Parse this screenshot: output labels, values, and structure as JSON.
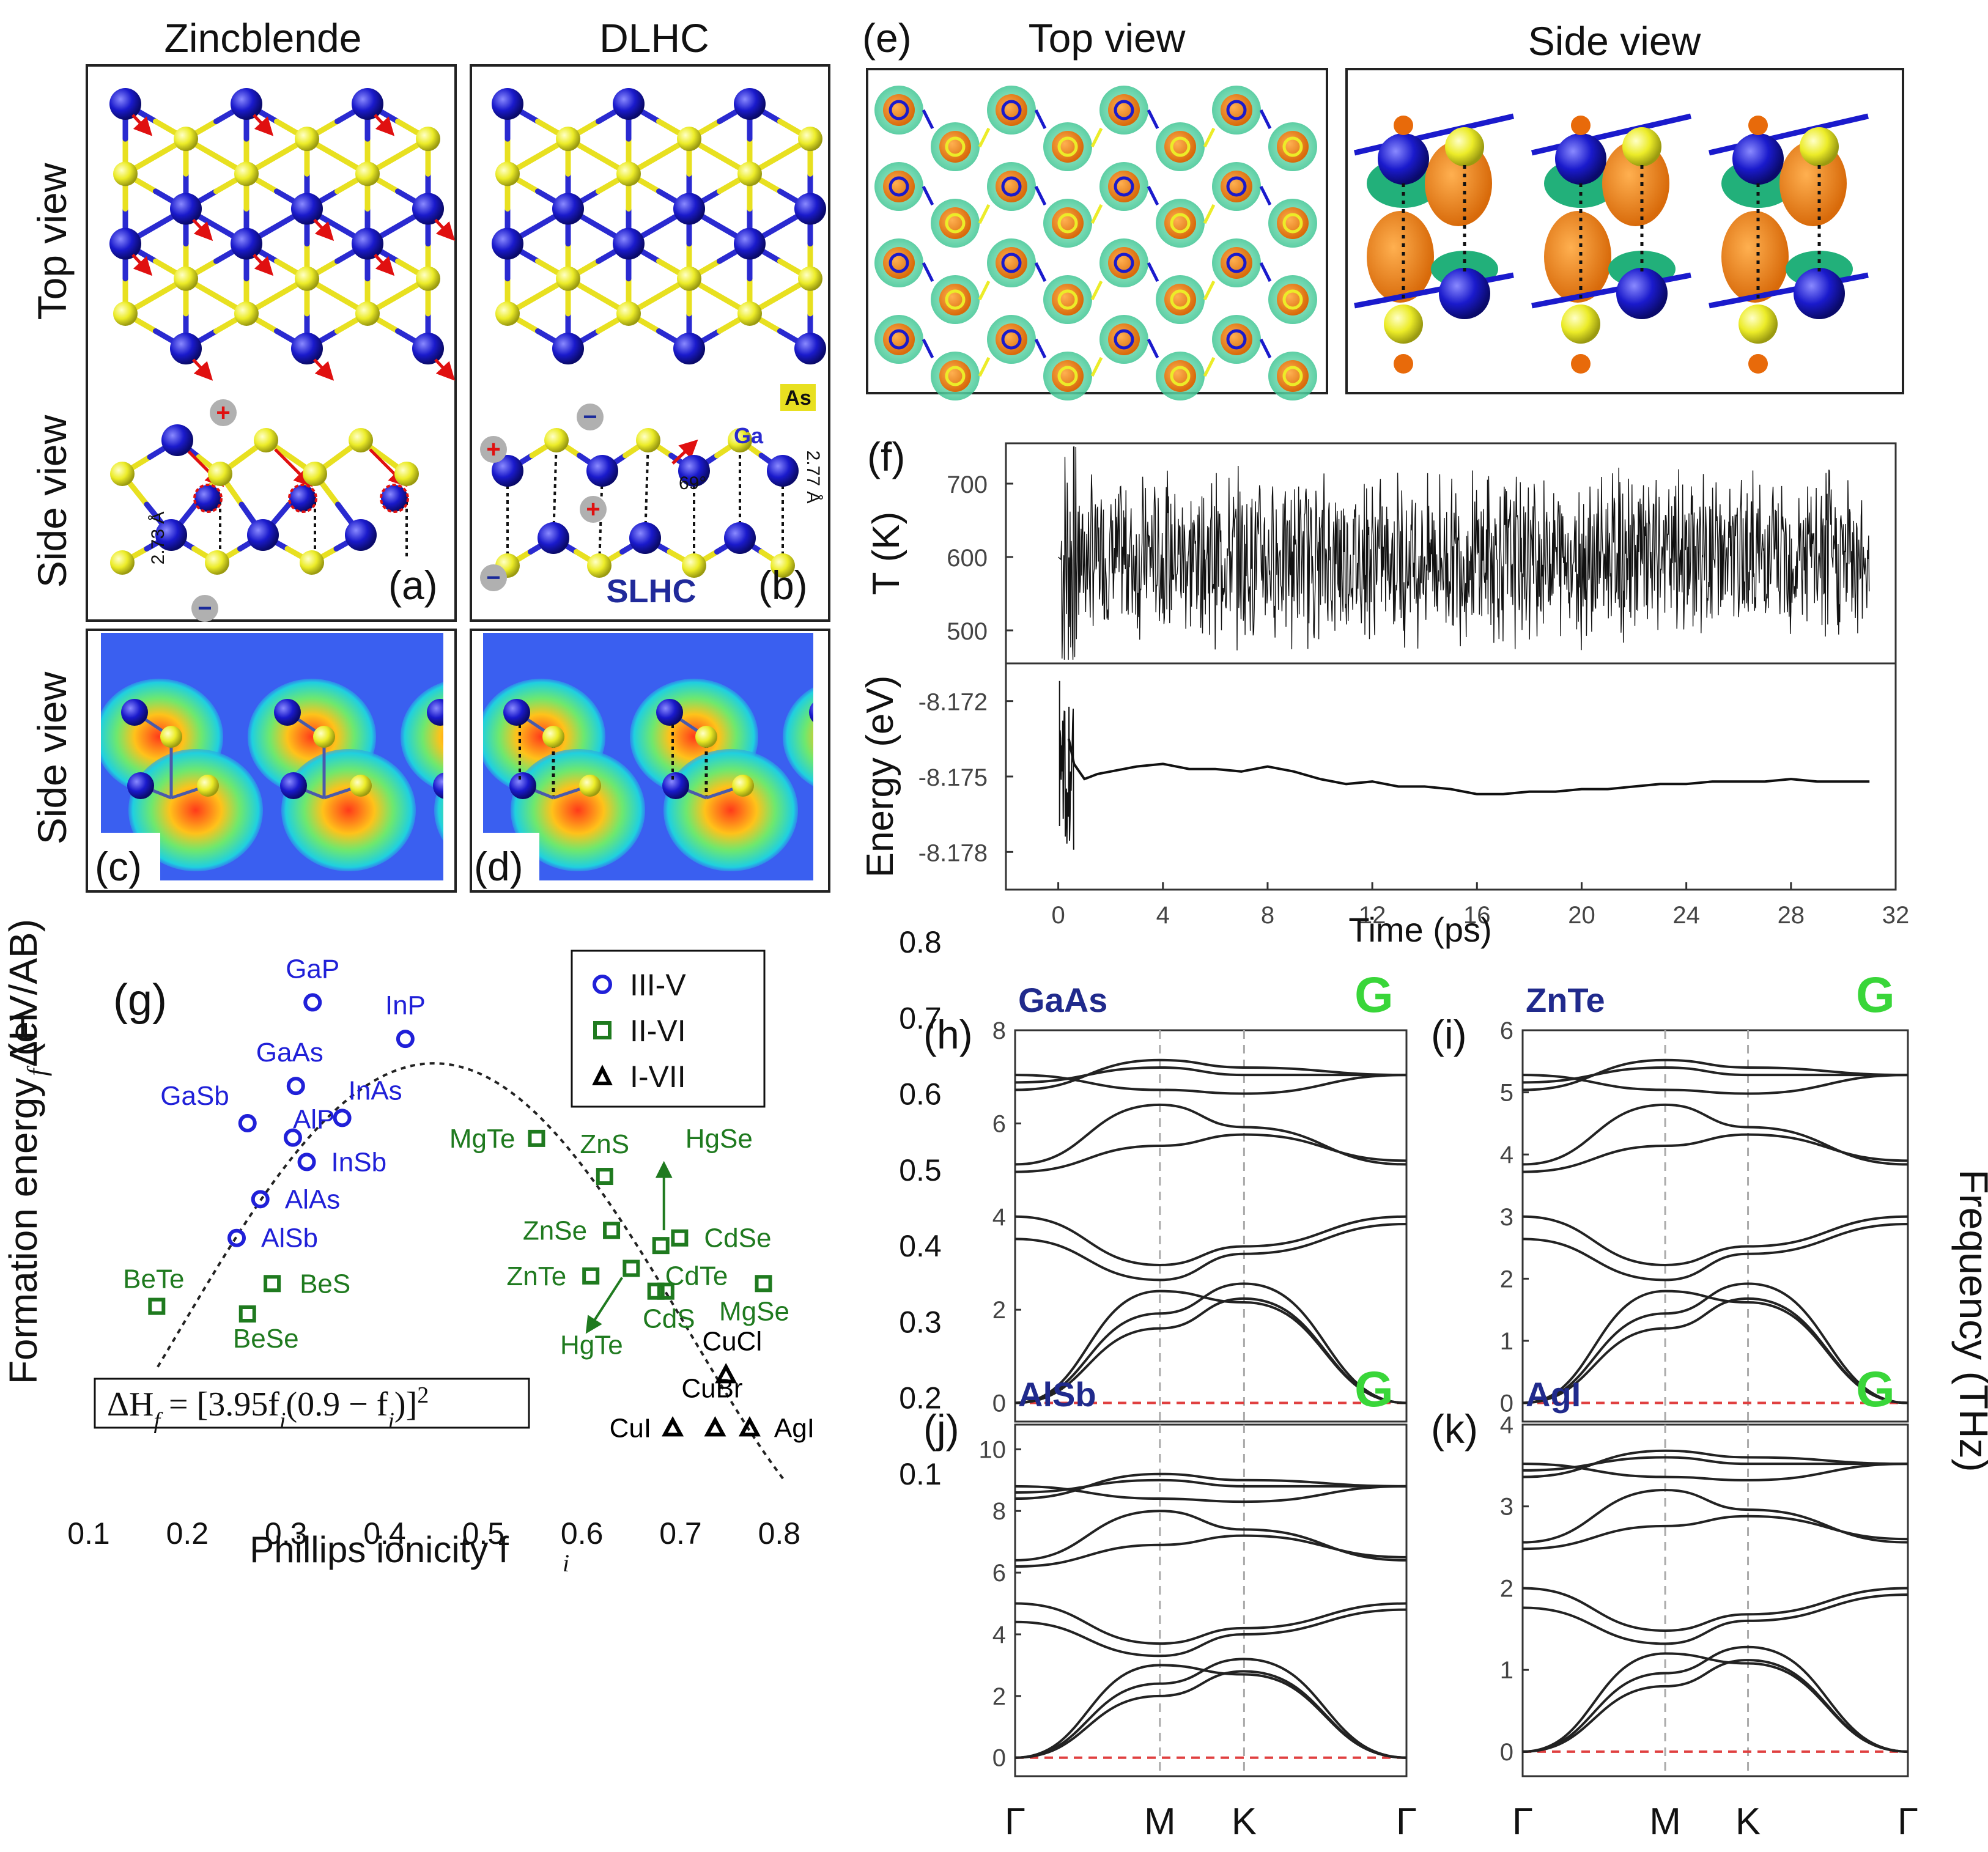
{
  "panels": {
    "a": {
      "label": "(a)",
      "title": "Zincblende",
      "bond": "2.73 Å"
    },
    "b": {
      "label": "(b)",
      "title": "DLHC",
      "bond": "2.77 Å",
      "angle": "69°",
      "ga": "Ga",
      "as": "As",
      "slhc": "SLHC"
    },
    "c": {
      "label": "(c)"
    },
    "d": {
      "label": "(d)"
    },
    "e": {
      "label": "(e)",
      "top": "Top view",
      "side": "Side view"
    },
    "f": {
      "label": "(f)"
    },
    "g": {
      "label": "(g)"
    },
    "h": {
      "label": "(h)",
      "name": "GaAs"
    },
    "i": {
      "label": "(i)",
      "name": "ZnTe"
    },
    "j": {
      "label": "(j)",
      "name": "AlSb"
    },
    "k": {
      "label": "(k)",
      "name": "AgI"
    }
  },
  "row_labels": {
    "top_view": "Top view",
    "side_view_1": "Side view",
    "side_view_2": "Side view"
  },
  "colors": {
    "ga": "#1a1acc",
    "as": "#e8e020",
    "bond_blue": "#2a2ad0",
    "bond_yellow": "#e8e020",
    "red_arrow": "#e01010",
    "iii_v": "#2020d8",
    "ii_vi": "#1f7a1f",
    "i_vii": "#000000",
    "band_line": "#222222",
    "zero_line": "#e04040",
    "g_letter": "#39d639"
  },
  "band_common": {
    "g_letter": "G",
    "xticks": [
      "Γ",
      "M",
      "K",
      "Γ"
    ],
    "ylabel": "Frequency (THz)"
  },
  "chart_data": [
    {
      "id": "f-top",
      "type": "line",
      "ylabel": "T (K)",
      "yticks": [
        500,
        600,
        700
      ],
      "ylim": [
        455,
        755
      ],
      "mean": 600,
      "xlim": [
        -2,
        32
      ]
    },
    {
      "id": "f-bottom",
      "type": "line",
      "ylabel": "Energy (eV)",
      "xlabel": "Time (ps)",
      "xticks": [
        0,
        4,
        8,
        12,
        16,
        20,
        24,
        28,
        32
      ],
      "yticks": [
        -8.172,
        -8.175,
        -8.178
      ],
      "ylim": [
        -8.1795,
        -8.1705
      ],
      "xlim": [
        -2,
        32
      ],
      "x": [
        0.4,
        0.6,
        0.8,
        1.0,
        1.5,
        2,
        3,
        4,
        5,
        6,
        7,
        8,
        9,
        10,
        11,
        12,
        13,
        14,
        15,
        16,
        17,
        18,
        19,
        20,
        21,
        22,
        23,
        24,
        25,
        26,
        27,
        28,
        29,
        30,
        31
      ],
      "y": [
        -8.1735,
        -8.1745,
        -8.1748,
        -8.1751,
        -8.1749,
        -8.1748,
        -8.1746,
        -8.1745,
        -8.1747,
        -8.1747,
        -8.1748,
        -8.1746,
        -8.1748,
        -8.1751,
        -8.1753,
        -8.1752,
        -8.1754,
        -8.1754,
        -8.1755,
        -8.1757,
        -8.1757,
        -8.1756,
        -8.1756,
        -8.1755,
        -8.1755,
        -8.1754,
        -8.1753,
        -8.1753,
        -8.1752,
        -8.1752,
        -8.1752,
        -8.1751,
        -8.1752,
        -8.1752,
        -8.1752
      ]
    },
    {
      "id": "g",
      "type": "scatter",
      "xlabel": "Phillips ionicity f",
      "xlabel_sub": "i",
      "ylabel": "Formation energy ΔH",
      "ylabel_sub": "f",
      "ylabel_unit": "(eV/AB)",
      "xlim": [
        0.1,
        0.85
      ],
      "ylim": [
        0.1,
        0.8
      ],
      "xticks": [
        0.1,
        0.2,
        0.3,
        0.4,
        0.5,
        0.6,
        0.7,
        0.8
      ],
      "yticks": [
        0.1,
        0.2,
        0.3,
        0.4,
        0.5,
        0.6,
        0.7,
        0.8
      ],
      "legend": [
        "III-V",
        "II-VI",
        "I-VII"
      ],
      "formula": "ΔH",
      "formula_sub": "f",
      "formula_rhs": " = [3.95f",
      "formula_sub2": "i",
      "formula_mid": "(0.9 − f",
      "formula_sub3": "i",
      "formula_end": ")]",
      "formula_sup": "2",
      "fit": {
        "a": 3.95,
        "b": 0.9
      },
      "series": [
        {
          "name": "III-V",
          "marker": "circle",
          "points": [
            {
              "label": "GaP",
              "x": 0.327,
              "y": 0.72
            },
            {
              "label": "InP",
              "x": 0.421,
              "y": 0.672
            },
            {
              "label": "GaAs",
              "x": 0.31,
              "y": 0.61
            },
            {
              "label": "GaSb",
              "x": 0.261,
              "y": 0.561
            },
            {
              "label": "InAs",
              "x": 0.357,
              "y": 0.568
            },
            {
              "label": "AlP",
              "x": 0.307,
              "y": 0.542
            },
            {
              "label": "InSb",
              "x": 0.321,
              "y": 0.51
            },
            {
              "label": "AlAs",
              "x": 0.274,
              "y": 0.461
            },
            {
              "label": "AlSb",
              "x": 0.25,
              "y": 0.41
            }
          ]
        },
        {
          "name": "II-VI",
          "marker": "square",
          "points": [
            {
              "label": "MgTe",
              "x": 0.554,
              "y": 0.541
            },
            {
              "label": "ZnS",
              "x": 0.623,
              "y": 0.491
            },
            {
              "label": "HgSe",
              "x": 0.68,
              "y": 0.4
            },
            {
              "label": "ZnSe",
              "x": 0.63,
              "y": 0.42
            },
            {
              "label": "CdSe",
              "x": 0.699,
              "y": 0.41
            },
            {
              "label": "CdTe",
              "x": 0.675,
              "y": 0.34
            },
            {
              "label": "ZnTe",
              "x": 0.609,
              "y": 0.36
            },
            {
              "label": "HgTe",
              "x": 0.65,
              "y": 0.37
            },
            {
              "label": "CdS",
              "x": 0.685,
              "y": 0.34
            },
            {
              "label": "MgSe",
              "x": 0.784,
              "y": 0.35
            },
            {
              "label": "BeTe",
              "x": 0.169,
              "y": 0.32
            },
            {
              "label": "BeS",
              "x": 0.286,
              "y": 0.35
            },
            {
              "label": "BeSe",
              "x": 0.261,
              "y": 0.31
            }
          ]
        },
        {
          "name": "I-VII",
          "marker": "triangle",
          "points": [
            {
              "label": "CuCl",
              "x": 0.746,
              "y": 0.23
            },
            {
              "label": "CuBr",
              "x": 0.735,
              "y": 0.16
            },
            {
              "label": "CuI",
              "x": 0.692,
              "y": 0.16
            },
            {
              "label": "AgI",
              "x": 0.77,
              "y": 0.16
            }
          ]
        }
      ]
    },
    {
      "id": "h",
      "type": "line",
      "title": "GaAs",
      "yticks": [
        0,
        2,
        4,
        6,
        8
      ],
      "ylim": [
        -0.4,
        8
      ]
    },
    {
      "id": "i",
      "type": "line",
      "title": "ZnTe",
      "yticks": [
        0,
        1,
        2,
        3,
        4,
        5,
        6
      ],
      "ylim": [
        -0.3,
        6
      ]
    },
    {
      "id": "j",
      "type": "line",
      "title": "AlSb",
      "yticks": [
        0,
        2,
        4,
        6,
        8,
        10
      ],
      "ylim": [
        -0.6,
        10.8
      ]
    },
    {
      "id": "k",
      "type": "line",
      "title": "AgI",
      "yticks": [
        0,
        1,
        2,
        3,
        4
      ],
      "ylim": [
        -0.3,
        4
      ]
    }
  ]
}
